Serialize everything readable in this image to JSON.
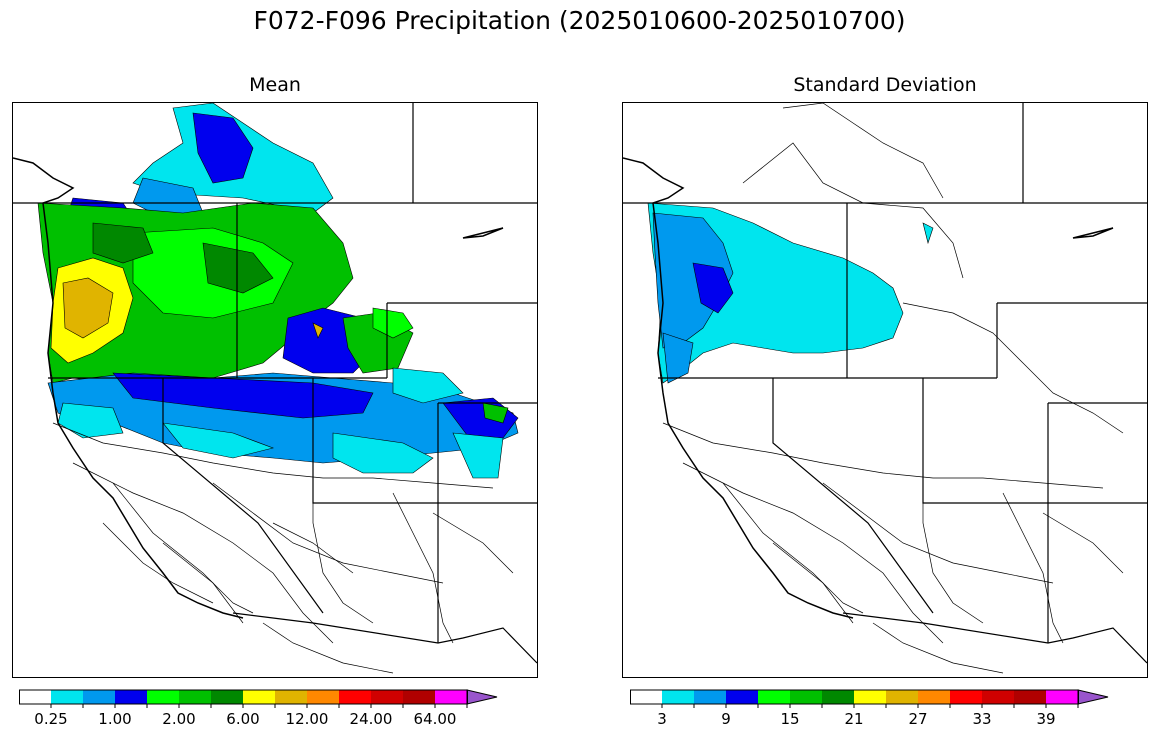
{
  "figure": {
    "title": "F072-F096 Precipitation (2025010600-2025010700)"
  },
  "panels": [
    {
      "title": "Mean",
      "colorbar": {
        "colors": [
          "#ffffff",
          "#00e5ee",
          "#0099ee",
          "#0000ee",
          "#00ff00",
          "#00c000",
          "#008800",
          "#ffff00",
          "#e0b400",
          "#ff8800",
          "#ff0000",
          "#d00000",
          "#b00000",
          "#ff00ff",
          "#9955cc"
        ],
        "tick_labels": [
          "0.25",
          "1.00",
          "2.00",
          "6.00",
          "12.00",
          "24.00",
          "64.00"
        ],
        "extend": "max"
      }
    },
    {
      "title": "Standard Deviation",
      "colorbar": {
        "colors": [
          "#ffffff",
          "#00e5ee",
          "#0099ee",
          "#0000ee",
          "#00ff00",
          "#00c000",
          "#008800",
          "#ffff00",
          "#e0b400",
          "#ff8800",
          "#ff0000",
          "#d00000",
          "#b00000",
          "#ff00ff",
          "#9955cc"
        ],
        "tick_labels": [
          "3",
          "9",
          "15",
          "21",
          "27",
          "33",
          "39"
        ],
        "extend": "max"
      }
    }
  ]
}
